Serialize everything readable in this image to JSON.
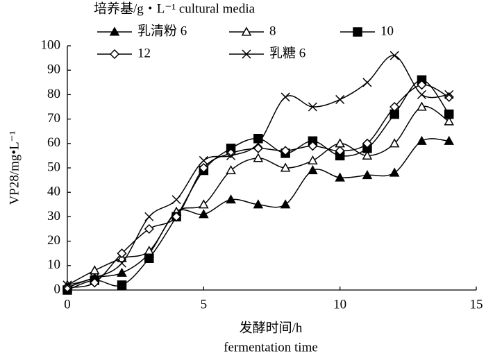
{
  "chart_data": {
    "type": "line",
    "legend_title": "培养基/g・L⁻¹ cultural media",
    "y_label": "VP28/mg•L⁻¹",
    "x_label": "发酵时间/h",
    "x_label_en": "fermentation time",
    "x": [
      0,
      1,
      2,
      3,
      4,
      5,
      6,
      7,
      8,
      9,
      10,
      11,
      12,
      13,
      14
    ],
    "series": [
      {
        "name": "乳清粉 6",
        "marker": "triangle-filled",
        "color": "#000000",
        "values": [
          1,
          5,
          7,
          15,
          32,
          31,
          37,
          35,
          35,
          49,
          46,
          47,
          48,
          61,
          61
        ]
      },
      {
        "name": "8",
        "marker": "triangle-open",
        "color": "#000000",
        "values": [
          2,
          8,
          13,
          16,
          32,
          35,
          49,
          54,
          50,
          53,
          60,
          55,
          60,
          75,
          69
        ]
      },
      {
        "name": "10",
        "marker": "square-filled",
        "color": "#000000",
        "values": [
          0,
          4,
          2,
          13,
          30,
          49,
          58,
          62,
          56,
          61,
          55,
          58,
          72,
          86,
          72
        ]
      },
      {
        "name": "12",
        "marker": "diamond-open",
        "color": "#000000",
        "values": [
          1,
          3,
          15,
          25,
          30,
          50,
          56,
          58,
          57,
          59,
          57,
          60,
          75,
          84,
          79
        ]
      },
      {
        "name": "乳糖 6",
        "marker": "cross",
        "color": "#000000",
        "values": [
          2,
          5,
          11,
          30,
          37,
          53,
          55,
          60,
          79,
          75,
          78,
          85,
          96,
          80,
          80
        ]
      }
    ],
    "xlim": [
      0,
      15
    ],
    "xticks": [
      0,
      5,
      10,
      15
    ],
    "ylim": [
      0,
      100
    ],
    "yticks": [
      0,
      10,
      20,
      30,
      40,
      50,
      60,
      70,
      80,
      90,
      100
    ]
  }
}
